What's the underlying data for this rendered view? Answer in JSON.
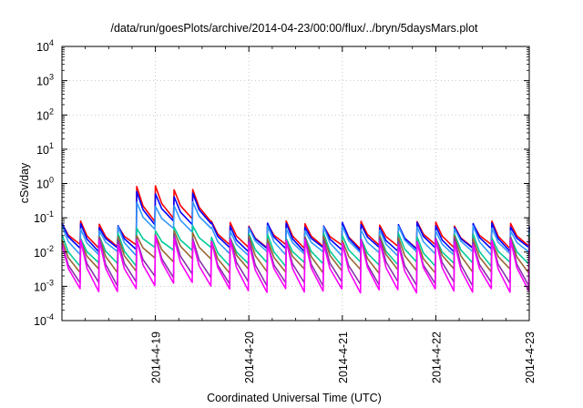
{
  "chart_data": {
    "type": "line",
    "title": "/data/run/goesPlots/archive/2014-04-23/00:00/flux/../bryn/5daysMars.plot",
    "xlabel": "Coordinated Universal Time (UTC)",
    "ylabel": "cSv/day",
    "y_scale": "log",
    "ylim": [
      0.0001,
      10000
    ],
    "y_ticks": [
      {
        "base": "10",
        "exp": "4"
      },
      {
        "base": "10",
        "exp": "3"
      },
      {
        "base": "10",
        "exp": "2"
      },
      {
        "base": "10",
        "exp": "1"
      },
      {
        "base": "10",
        "exp": "0"
      },
      {
        "base": "10",
        "exp": "-1"
      },
      {
        "base": "10",
        "exp": "-2"
      },
      {
        "base": "10",
        "exp": "-3"
      },
      {
        "base": "10",
        "exp": "-4"
      }
    ],
    "xlim": [
      "2014-04-18T00:00",
      "2014-04-23T00:00"
    ],
    "x_ticks": [
      "2014-4-19",
      "2014-4-20",
      "2014-4-21",
      "2014-4-22",
      "2014-4-23"
    ],
    "grid": true,
    "legend": "none",
    "pattern": {
      "description": "sawtooth: value peaks then decays over each ~4.8 h cycle",
      "cycle_hours": 4.8,
      "x_start": "2014-04-18T00:00",
      "x_end": "2014-04-23T00:00"
    },
    "series": [
      {
        "color": "#ff0000",
        "peak_base": 0.068,
        "trough_base": 0.0145,
        "peak_enhanced": 0.75,
        "trough_enhanced": 0.09,
        "enhanced_window": [
          "2014-04-18T15:00",
          "2014-04-19T12:00"
        ]
      },
      {
        "color": "#0000ff",
        "peak_base": 0.062,
        "trough_base": 0.012,
        "peak_enhanced": 0.5,
        "trough_enhanced": 0.07,
        "enhanced_window": [
          "2014-04-18T15:00",
          "2014-04-19T12:00"
        ]
      },
      {
        "color": "#3399ff",
        "peak_base": 0.05,
        "trough_base": 0.009,
        "peak_enhanced": 0.25,
        "trough_enhanced": 0.045,
        "enhanced_window": [
          "2014-04-18T15:00",
          "2014-04-19T12:00"
        ]
      },
      {
        "color": "#00cc99",
        "peak_base": 0.03,
        "trough_base": 0.0045,
        "peak_enhanced": 0.05,
        "trough_enhanced": 0.012,
        "enhanced_window": [
          "2014-04-18T15:00",
          "2014-04-19T12:00"
        ]
      },
      {
        "color": "#996633",
        "peak_base": 0.025,
        "trough_base": 0.0028,
        "peak_enhanced": 0.035,
        "trough_enhanced": 0.006,
        "enhanced_window": [
          "2014-04-18T15:00",
          "2014-04-19T12:00"
        ]
      },
      {
        "color": "#8833aa",
        "peak_base": 0.022,
        "trough_base": 0.0012,
        "peak_enhanced": 0.028,
        "trough_enhanced": 0.002,
        "enhanced_window": [
          "2014-04-18T15:00",
          "2014-04-19T12:00"
        ]
      },
      {
        "color": "#ff00ff",
        "peak_base": 0.02,
        "trough_base": 0.00075,
        "peak_enhanced": 0.025,
        "trough_enhanced": 0.0012,
        "enhanced_window": [
          "2014-04-18T15:00",
          "2014-04-19T12:00"
        ]
      }
    ]
  }
}
